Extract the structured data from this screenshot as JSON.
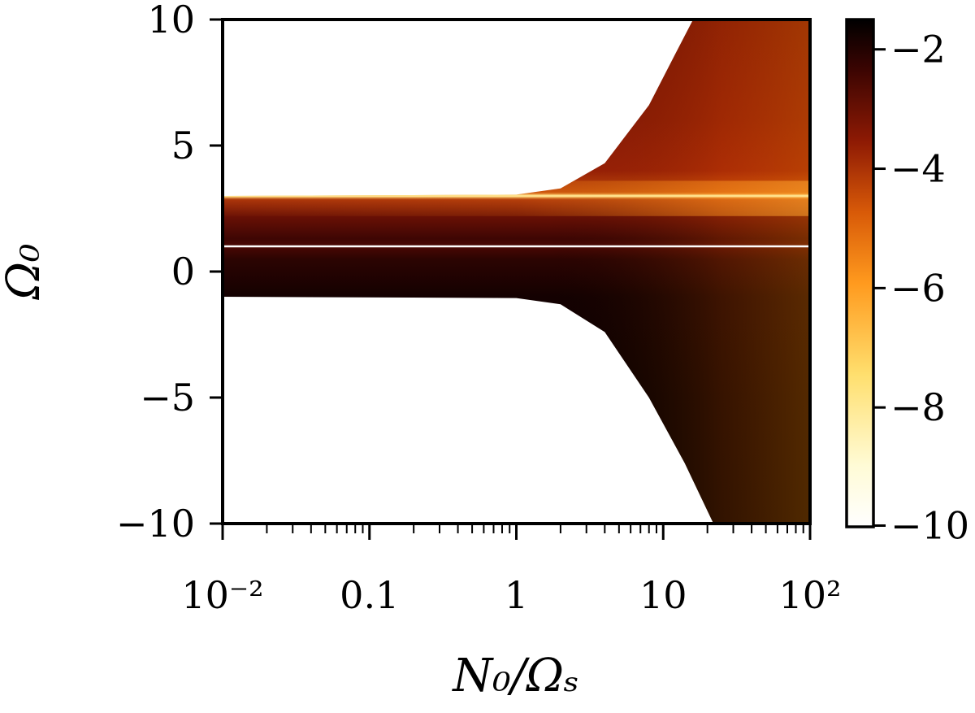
{
  "chart_data": {
    "type": "heatmap",
    "title": "",
    "xlabel": "N₀/Ωₛ",
    "ylabel": "Ω₀",
    "x_scale": "log",
    "xlim": [
      0.01,
      100
    ],
    "ylim": [
      -10,
      10
    ],
    "x_ticks": [
      {
        "value": 0.01,
        "label": "10⁻²"
      },
      {
        "value": 0.1,
        "label": "0.1"
      },
      {
        "value": 1,
        "label": "1"
      },
      {
        "value": 10,
        "label": "10"
      },
      {
        "value": 100,
        "label": "10²"
      }
    ],
    "y_ticks": [
      {
        "value": 10,
        "label": "10"
      },
      {
        "value": 5,
        "label": "5"
      },
      {
        "value": 0,
        "label": "0"
      },
      {
        "value": -5,
        "label": "−5"
      },
      {
        "value": -10,
        "label": "−10"
      }
    ],
    "colorbar": {
      "range": [
        -10,
        -1.5
      ],
      "colormap": "afmhot_r",
      "ticks": [
        {
          "value": -2,
          "label": "−2"
        },
        {
          "value": -4,
          "label": "−4"
        },
        {
          "value": -6,
          "label": "−6"
        },
        {
          "value": -8,
          "label": "−8"
        },
        {
          "value": -10,
          "label": "−10"
        }
      ]
    },
    "band": {
      "omega_min_at_small_N": -1,
      "omega_max_at_small_N": 3,
      "upper_boundary": [
        [
          0.01,
          3.0
        ],
        [
          1,
          3.05
        ],
        [
          2,
          3.3
        ],
        [
          4,
          4.3
        ],
        [
          8,
          6.6
        ],
        [
          12,
          8.6
        ],
        [
          16,
          10
        ]
      ],
      "lower_boundary": [
        [
          0.01,
          -1.0
        ],
        [
          1,
          -1.05
        ],
        [
          2,
          -1.3
        ],
        [
          4,
          -2.4
        ],
        [
          8,
          -5.0
        ],
        [
          14,
          -7.6
        ],
        [
          22,
          -10
        ]
      ]
    },
    "bright_lines": [
      {
        "omega": 3,
        "color": "#ffe08a"
      },
      {
        "omega": 1,
        "color": "#ffffff"
      }
    ]
  }
}
